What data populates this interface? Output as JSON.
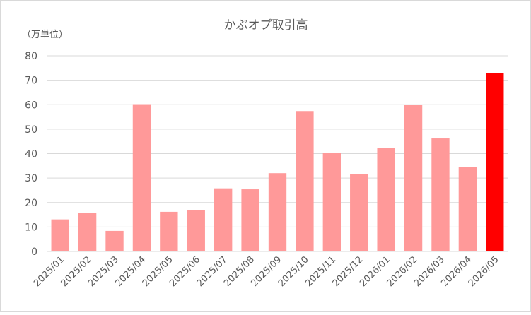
{
  "chart_data": {
    "type": "bar",
    "title": "かぶオプ取引高",
    "unit_label": "（万単位）",
    "categories": [
      "2025/01",
      "2025/02",
      "2025/03",
      "2025/04",
      "2025/05",
      "2025/06",
      "2025/07",
      "2025/08",
      "2025/09",
      "2025/10",
      "2025/11",
      "2025/12",
      "2026/01",
      "2026/02",
      "2026/03",
      "2026/04",
      "2026/05"
    ],
    "values": [
      13.1,
      15.6,
      8.4,
      60.2,
      16.2,
      16.8,
      25.8,
      25.4,
      32.0,
      57.4,
      40.4,
      31.7,
      42.4,
      59.8,
      46.2,
      34.4,
      73.0
    ],
    "highlight_index": 16,
    "ylim": [
      0,
      80
    ],
    "yticks": [
      0,
      10,
      20,
      30,
      40,
      50,
      60,
      70,
      80
    ],
    "grid": true,
    "colors": {
      "bar": "#ff9999",
      "highlight": "#ff0000",
      "grid": "#d9d9d9"
    }
  }
}
